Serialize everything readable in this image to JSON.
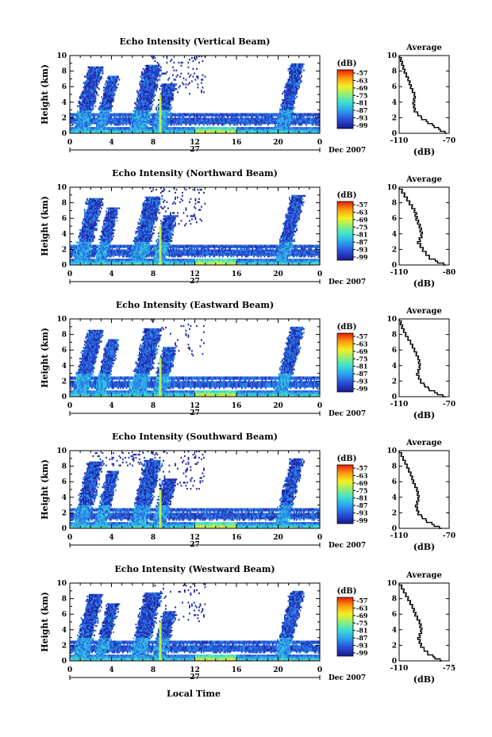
{
  "x_axis_title": "Local Time",
  "colorbar": {
    "unit": "(dB)",
    "tick_labels": [
      "-57",
      "-63",
      "-69",
      "-75",
      "-81",
      "-87",
      "-93",
      "-99"
    ]
  },
  "date_axis": {
    "day": "27",
    "label": "Dec 2007"
  },
  "average_title": "Average",
  "average_unit": "(dB)",
  "chart_data": [
    {
      "type": "heatmap",
      "title": "Echo Intensity (Vertical Beam)",
      "xlabel": "Local Time",
      "ylabel": "Height (km)",
      "xlim": [
        0,
        24
      ],
      "ylim": [
        0,
        10
      ],
      "x_ticks": [
        "0",
        "4",
        "8",
        "12",
        "16",
        "20",
        "0"
      ],
      "y_ticks": [
        "0",
        "2",
        "4",
        "6",
        "8",
        "10"
      ],
      "color_scale_db": [
        -99,
        -57
      ],
      "average_profile": {
        "xlim": [
          -110,
          -70
        ],
        "x_ticks": [
          "-110",
          "-70"
        ],
        "height_km": [
          0,
          1,
          2,
          3,
          4,
          5,
          6,
          7,
          8,
          9,
          10
        ],
        "db": [
          -72,
          -82,
          -92,
          -98,
          -99,
          -98,
          -101,
          -103,
          -106,
          -108,
          -110
        ]
      }
    },
    {
      "type": "heatmap",
      "title": "Echo Intensity (Northward Beam)",
      "xlabel": "Local Time",
      "ylabel": "Height (km)",
      "xlim": [
        0,
        24
      ],
      "ylim": [
        0,
        10
      ],
      "x_ticks": [
        "0",
        "4",
        "8",
        "12",
        "16",
        "20",
        "0"
      ],
      "y_ticks": [
        "0",
        "2",
        "4",
        "6",
        "8",
        "10"
      ],
      "color_scale_db": [
        -99,
        -57
      ],
      "average_profile": {
        "xlim": [
          -110,
          -80
        ],
        "x_ticks": [
          "-110",
          "-80"
        ],
        "height_km": [
          0,
          1,
          2,
          3,
          4,
          5,
          6,
          7,
          8,
          9,
          10
        ],
        "db": [
          -82,
          -92,
          -96,
          -99,
          -97,
          -98,
          -100,
          -101,
          -104,
          -107,
          -110
        ]
      }
    },
    {
      "type": "heatmap",
      "title": "Echo Intensity (Eastward Beam)",
      "xlabel": "Local Time",
      "ylabel": "Height (km)",
      "xlim": [
        0,
        24
      ],
      "ylim": [
        0,
        10
      ],
      "x_ticks": [
        "0",
        "4",
        "8",
        "12",
        "16",
        "20",
        "0"
      ],
      "y_ticks": [
        "0",
        "2",
        "4",
        "6",
        "8",
        "10"
      ],
      "color_scale_db": [
        -99,
        -57
      ],
      "average_profile": {
        "xlim": [
          -110,
          -70
        ],
        "x_ticks": [
          "-110",
          "-70"
        ],
        "height_km": [
          0,
          1,
          2,
          3,
          4,
          5,
          6,
          7,
          8,
          9,
          10
        ],
        "db": [
          -73,
          -86,
          -93,
          -96,
          -94,
          -95,
          -98,
          -101,
          -105,
          -108,
          -110
        ]
      }
    },
    {
      "type": "heatmap",
      "title": "Echo Intensity (Southward Beam)",
      "xlabel": "Local Time",
      "ylabel": "Height (km)",
      "xlim": [
        0,
        24
      ],
      "ylim": [
        0,
        10
      ],
      "x_ticks": [
        "0",
        "4",
        "8",
        "12",
        "16",
        "20",
        "0"
      ],
      "y_ticks": [
        "0",
        "2",
        "4",
        "6",
        "8",
        "10"
      ],
      "color_scale_db": [
        -99,
        -57
      ],
      "average_profile": {
        "xlim": [
          -110,
          -70
        ],
        "x_ticks": [
          "-110",
          "-70"
        ],
        "height_km": [
          0,
          1,
          2,
          3,
          4,
          5,
          6,
          7,
          8,
          9,
          10
        ],
        "db": [
          -76,
          -88,
          -95,
          -97,
          -95,
          -96,
          -99,
          -101,
          -104,
          -107,
          -110
        ]
      }
    },
    {
      "type": "heatmap",
      "title": "Echo Intensity (Westward Beam)",
      "xlabel": "Local Time",
      "ylabel": "Height (km)",
      "xlim": [
        0,
        24
      ],
      "ylim": [
        0,
        10
      ],
      "x_ticks": [
        "0",
        "4",
        "8",
        "12",
        "16",
        "20",
        "0"
      ],
      "y_ticks": [
        "0",
        "2",
        "4",
        "6",
        "8",
        "10"
      ],
      "color_scale_db": [
        -99,
        -57
      ],
      "average_profile": {
        "xlim": [
          -110,
          -75
        ],
        "x_ticks": [
          "-110",
          "-75"
        ],
        "height_km": [
          0,
          1,
          2,
          3,
          4,
          5,
          6,
          7,
          8,
          9,
          10
        ],
        "db": [
          -80,
          -90,
          -95,
          -97,
          -95,
          -96,
          -99,
          -101,
          -104,
          -107,
          -110
        ]
      }
    }
  ]
}
